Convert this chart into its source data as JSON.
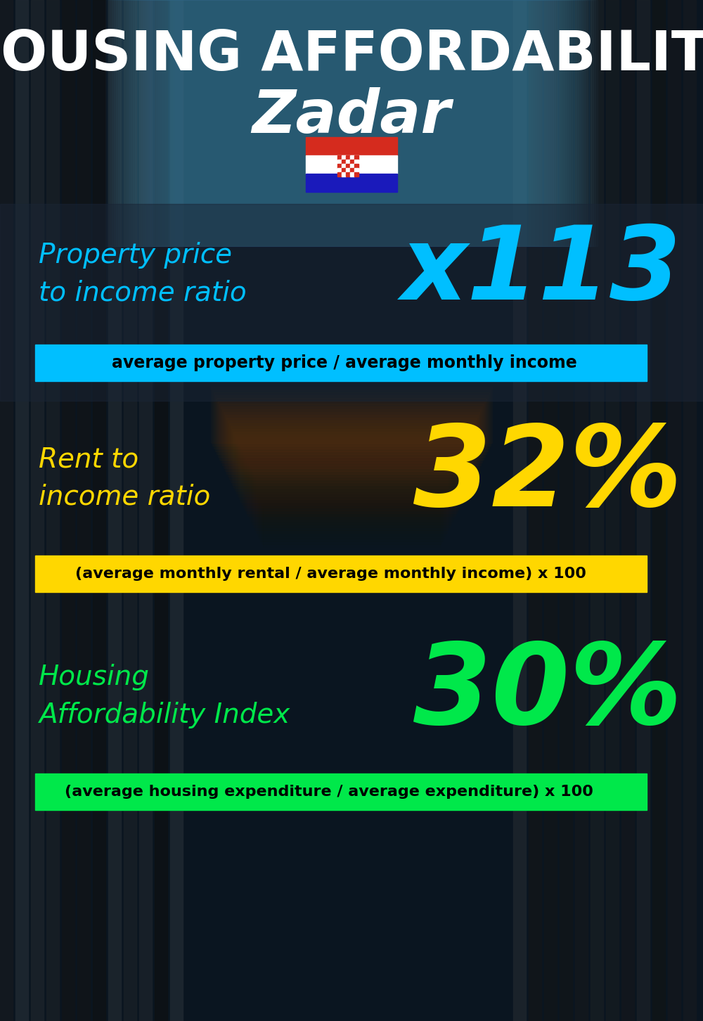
{
  "title_line1": "HOUSING AFFORDABILITY",
  "title_line2": "Zadar",
  "metric1_label": "Property price\nto income ratio",
  "metric1_value": "x113",
  "metric1_label_color": "#00bfff",
  "metric1_value_color": "#00bfff",
  "metric1_formula": "average property price / average monthly income",
  "metric1_formula_bg": "#00bfff",
  "metric2_label": "Rent to\nincome ratio",
  "metric2_value": "32%",
  "metric2_label_color": "#ffd700",
  "metric2_value_color": "#ffd700",
  "metric2_formula": "(average monthly rental / average monthly income) x 100",
  "metric2_formula_bg": "#ffd700",
  "metric3_label": "Housing\nAffordability Index",
  "metric3_value": "30%",
  "metric3_label_color": "#00e84a",
  "metric3_value_color": "#00e84a",
  "metric3_formula": "(average housing expenditure / average expenditure) x 100",
  "metric3_formula_bg": "#00e84a",
  "bg_color": "#0a1520",
  "title_color": "#ffffff",
  "formula_text_color": "#000000"
}
